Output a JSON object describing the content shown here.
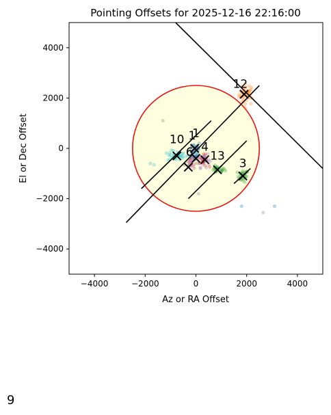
{
  "page_number": "9",
  "chart_data": {
    "type": "scatter",
    "title": "Pointing Offsets for 2025-12-16 22:16:00",
    "xlabel": "Az or RA Offset",
    "ylabel": "El or Dec Offset",
    "xlim": [
      -5000,
      5000
    ],
    "ylim": [
      -5000,
      5000
    ],
    "xticks": [
      -4000,
      -2000,
      0,
      2000,
      4000
    ],
    "yticks": [
      -4000,
      -2000,
      0,
      2000,
      4000
    ],
    "xtick_labels": [
      "−4000",
      "−2000",
      "0",
      "2000",
      "4000"
    ],
    "ytick_labels": [
      "−4000",
      "−2000",
      "0",
      "2000",
      "4000"
    ],
    "grid": false,
    "circle": {
      "center": [
        0,
        0
      ],
      "radius": 2500,
      "fill": "#ffffe0",
      "stroke": "#ee1111"
    },
    "colors": {
      "blue": "#1f77b4",
      "orange": "#ff7f0e",
      "green": "#2ca02c",
      "red": "#d62728",
      "purple": "#9467bd",
      "brown": "#8c564b",
      "pink": "#e377c2",
      "gray": "#7f7f7f",
      "olive": "#bcbd22",
      "cyan": "#17becf"
    },
    "lines": [
      {
        "from": [
          -800,
          5000
        ],
        "to": [
          5000,
          -800
        ]
      },
      {
        "from": [
          -2750,
          -2950
        ],
        "to": [
          2500,
          2500
        ]
      },
      {
        "from": [
          -2150,
          -1600
        ],
        "to": [
          600,
          1100
        ]
      },
      {
        "from": [
          -300,
          -2000
        ],
        "to": [
          2000,
          300
        ]
      },
      {
        "from": [
          1500,
          -1400
        ],
        "to": [
          2150,
          -800
        ]
      }
    ],
    "clusters": [
      {
        "label": "12",
        "color": "orange",
        "center": [
          2000,
          2150
        ],
        "spread": [
          250,
          350
        ],
        "n": 40,
        "label_pos": [
          1750,
          2400
        ]
      },
      {
        "label": "3",
        "color": "green",
        "center": [
          1850,
          -1100
        ],
        "spread": [
          180,
          200
        ],
        "n": 28,
        "label_pos": [
          1850,
          -750
        ]
      },
      {
        "label": "13",
        "color": "green",
        "center": [
          850,
          -850
        ],
        "spread": [
          250,
          120
        ],
        "n": 26,
        "label_pos": [
          850,
          -450
        ]
      },
      {
        "label": "10",
        "color": "cyan",
        "center": [
          -750,
          -300
        ],
        "spread": [
          300,
          180
        ],
        "n": 30,
        "label_pos": [
          -750,
          200
        ]
      },
      {
        "label": "1",
        "color": "blue",
        "center": [
          -50,
          -100
        ],
        "spread": [
          200,
          350
        ],
        "n": 40,
        "label_pos": [
          0,
          450
        ]
      },
      {
        "label": "4",
        "color": "purple",
        "center": [
          300,
          -450
        ],
        "spread": [
          200,
          250
        ],
        "n": 30,
        "label_pos": [
          350,
          -100
        ]
      },
      {
        "label": "1",
        "color": "red",
        "center": [
          300,
          -500
        ],
        "spread": [
          150,
          200
        ],
        "n": 14,
        "label_pos": [
          -150,
          350
        ]
      },
      {
        "label": "6",
        "color": "brown",
        "center": [
          -250,
          -550
        ],
        "spread": [
          180,
          250
        ],
        "n": 18,
        "label_pos": [
          -250,
          -300
        ]
      },
      {
        "label": "",
        "color": "pink",
        "center": [
          -150,
          -600
        ],
        "spread": [
          200,
          200
        ],
        "n": 12,
        "label_pos": [
          0,
          0
        ]
      }
    ],
    "stray_points": [
      {
        "x": -1300,
        "y": 1100,
        "color": "gray"
      },
      {
        "x": -1800,
        "y": -600,
        "color": "cyan"
      },
      {
        "x": -1650,
        "y": -650,
        "color": "cyan"
      },
      {
        "x": 1800,
        "y": -2300,
        "color": "blue"
      },
      {
        "x": 3100,
        "y": -2300,
        "color": "blue"
      },
      {
        "x": 2650,
        "y": -2550,
        "color": "gray"
      },
      {
        "x": 100,
        "y": -1800,
        "color": "purple"
      }
    ],
    "markers": [
      {
        "x": 1900,
        "y": 2150
      },
      {
        "x": 1850,
        "y": -1100
      },
      {
        "x": 850,
        "y": -850
      },
      {
        "x": -750,
        "y": -300
      },
      {
        "x": -50,
        "y": 0
      },
      {
        "x": 350,
        "y": -450
      },
      {
        "x": -300,
        "y": -750
      },
      {
        "x": 0,
        "y": -400
      }
    ]
  }
}
